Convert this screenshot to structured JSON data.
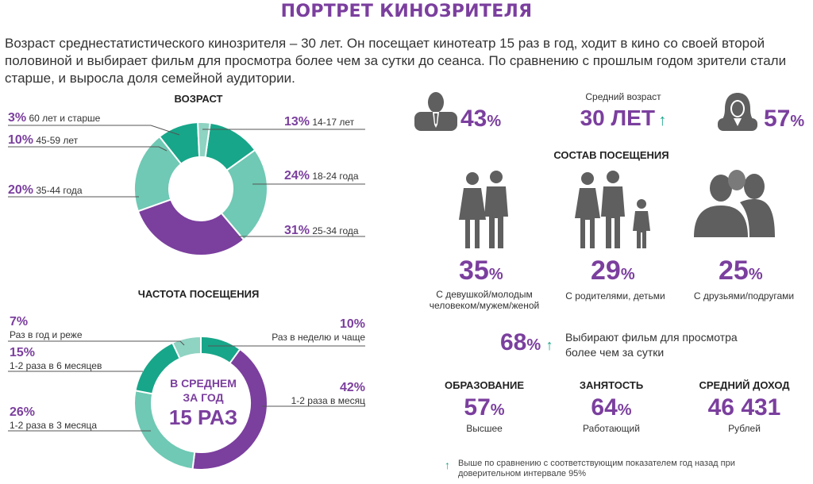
{
  "title": "ПОРТРЕТ КИНОЗРИТЕЛЯ",
  "intro": "Возраст среднестатистического кинозрителя – 30 лет. Он посещает кинотеатр 15 раз в год, ходит в кино со своей второй половиной и выбирает фильм для просмотра более чем за сутки до сеанса. По сравнению с прошлым годом зрители стали старше, и выросла доля семейной аудитории.",
  "age_section": {
    "heading": "ВОЗРАСТ",
    "items": [
      {
        "pct": "3%",
        "label": "60 лет и старше"
      },
      {
        "pct": "10%",
        "label": "45-59 лет"
      },
      {
        "pct": "20%",
        "label": "35-44 года"
      },
      {
        "pct": "13%",
        "label": "14-17 лет"
      },
      {
        "pct": "24%",
        "label": "18-24 года"
      },
      {
        "pct": "31%",
        "label": "25-34 года"
      }
    ]
  },
  "frequency_section": {
    "heading": "ЧАСТОТА ПОСЕЩЕНИЯ",
    "items": [
      {
        "pct": "7%",
        "label": "Раз в год и реже"
      },
      {
        "pct": "15%",
        "label": "1-2 раза в 6 месяцев"
      },
      {
        "pct": "26%",
        "label": "1-2 раза в 3 месяца"
      },
      {
        "pct": "10%",
        "label": "Раз в неделю и чаще"
      },
      {
        "pct": "42%",
        "label": "1-2 раза в месяц"
      }
    ],
    "center_line1": "В СРЕДНЕМ",
    "center_line2": "ЗА ГОД",
    "center_value": "15 РАЗ"
  },
  "gender": {
    "male_pct": "43",
    "female_pct": "57",
    "pct_sign": "%",
    "avg_age_label": "Средний возраст",
    "avg_age_value": "30 ЛЕТ"
  },
  "visit_composition": {
    "heading": "СОСТАВ ПОСЕЩЕНИЯ",
    "items": [
      {
        "pct": "35",
        "label": "С девушкой/молодым человеком/мужем/женой"
      },
      {
        "pct": "29",
        "label": "С родителями, детьми"
      },
      {
        "pct": "25",
        "label": "С друзьями/подругами"
      }
    ]
  },
  "advance_choice": {
    "pct": "68",
    "label": "Выбирают фильм для просмотра более чем за сутки"
  },
  "stats": [
    {
      "heading": "ОБРАЗОВАНИЕ",
      "value": "57",
      "unit": "%",
      "sub": "Высшее"
    },
    {
      "heading": "ЗАНЯТОСТЬ",
      "value": "64",
      "unit": "%",
      "sub": "Работающий"
    },
    {
      "heading": "СРЕДНИЙ ДОХОД",
      "value": "46 431",
      "unit": "",
      "sub": "Рублей"
    }
  ],
  "footnote": "Выше по сравнению с соответствующим показателем год назад при доверительном интервале 95%",
  "colors": {
    "purple": "#7b3f9e",
    "teal_dark": "#17a689",
    "teal_mid": "#6fc9b4",
    "teal_light": "#8fd3c2",
    "icon_gray": "#5f5f5f"
  },
  "chart_data": [
    {
      "type": "pie",
      "title": "ВОЗРАСТ",
      "categories": [
        "14-17 лет",
        "18-24 года",
        "25-34 года",
        "35-44 года",
        "45-59 лет",
        "60 лет и старше"
      ],
      "values": [
        13,
        24,
        31,
        20,
        10,
        3
      ],
      "colors": [
        "#17a689",
        "#6fc9b4",
        "#7b3f9e",
        "#6fc9b4",
        "#17a689",
        "#8fd3c2"
      ]
    },
    {
      "type": "pie",
      "title": "ЧАСТОТА ПОСЕЩЕНИЯ",
      "categories": [
        "Раз в неделю и чаще",
        "1-2 раза в месяц",
        "1-2 раза в 3 месяца",
        "1-2 раза в 6 месяцев",
        "Раз в год и реже"
      ],
      "values": [
        10,
        42,
        26,
        15,
        7
      ],
      "colors": [
        "#17a689",
        "#7b3f9e",
        "#6fc9b4",
        "#17a689",
        "#8fd3c2"
      ]
    }
  ]
}
